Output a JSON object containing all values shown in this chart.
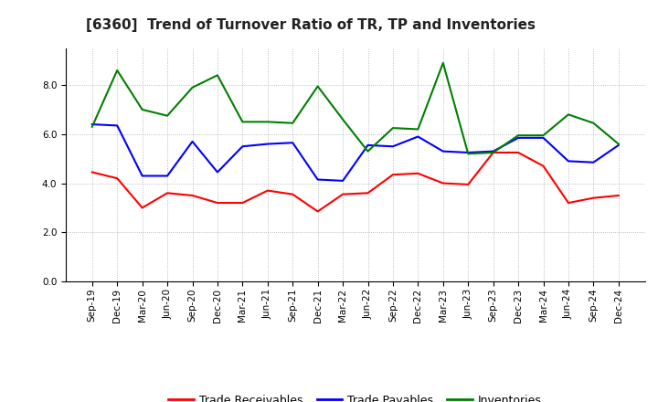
{
  "title": "[6360]  Trend of Turnover Ratio of TR, TP and Inventories",
  "x_labels": [
    "Sep-19",
    "Dec-19",
    "Mar-20",
    "Jun-20",
    "Sep-20",
    "Dec-20",
    "Mar-21",
    "Jun-21",
    "Sep-21",
    "Dec-21",
    "Mar-22",
    "Jun-22",
    "Sep-22",
    "Dec-22",
    "Mar-23",
    "Jun-23",
    "Sep-23",
    "Dec-23",
    "Mar-24",
    "Jun-24",
    "Sep-24",
    "Dec-24"
  ],
  "trade_receivables": [
    4.45,
    4.2,
    3.0,
    3.6,
    3.5,
    3.2,
    3.2,
    3.7,
    3.55,
    2.85,
    3.55,
    3.6,
    4.35,
    4.4,
    4.0,
    3.95,
    5.25,
    5.25,
    4.7,
    3.2,
    3.4,
    3.5
  ],
  "trade_payables": [
    6.4,
    6.35,
    4.3,
    4.3,
    5.7,
    4.45,
    5.5,
    5.6,
    5.65,
    4.15,
    4.1,
    5.55,
    5.5,
    5.9,
    5.3,
    5.25,
    5.3,
    5.85,
    5.85,
    4.9,
    4.85,
    5.55
  ],
  "inventories": [
    6.3,
    8.6,
    7.0,
    6.75,
    7.9,
    8.4,
    6.5,
    6.5,
    6.45,
    7.95,
    6.6,
    5.3,
    6.25,
    6.2,
    8.9,
    5.2,
    5.25,
    5.95,
    5.95,
    6.8,
    6.45,
    5.6
  ],
  "ylim": [
    0,
    9.5
  ],
  "yticks": [
    0.0,
    2.0,
    4.0,
    6.0,
    8.0
  ],
  "legend_labels": [
    "Trade Receivables",
    "Trade Payables",
    "Inventories"
  ],
  "line_colors": [
    "#ff0000",
    "#0000ff",
    "#008000"
  ],
  "background_color": "#ffffff",
  "plot_bg_color": "#ffffff",
  "grid_color": "#aaaaaa",
  "title_fontsize": 11,
  "tick_fontsize": 7.5,
  "legend_fontsize": 9
}
